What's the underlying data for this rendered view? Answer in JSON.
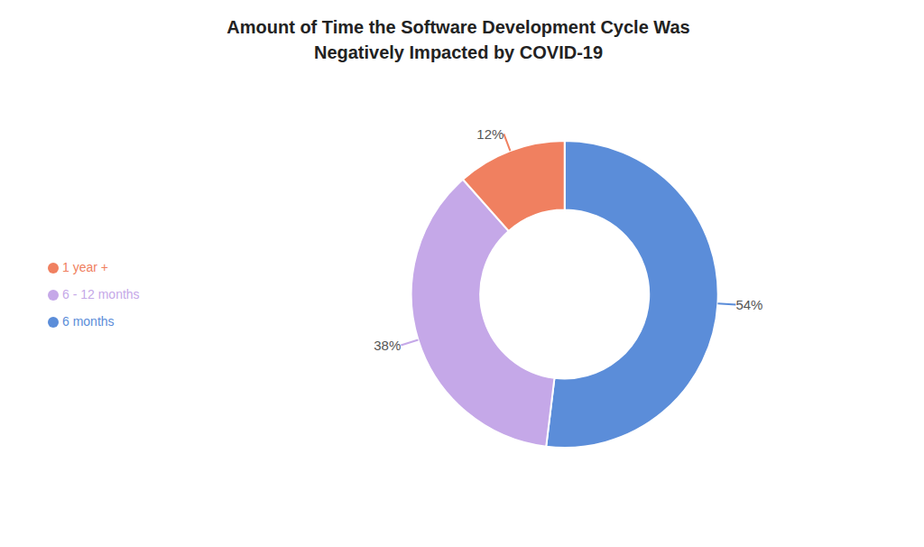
{
  "chart_data": {
    "type": "pie",
    "title": "Amount of Time the Software Development Cycle Was\nNegatively Impacted by COVID-19",
    "categories": [
      "6 months",
      "6 - 12 months",
      "1 year +"
    ],
    "values": [
      54,
      38,
      12
    ],
    "value_labels": [
      "54%",
      "38%",
      "12%"
    ],
    "colors": [
      "#5b8dd9",
      "#c5a8e8",
      "#f08060"
    ],
    "data_labels": true,
    "legend": "left"
  }
}
